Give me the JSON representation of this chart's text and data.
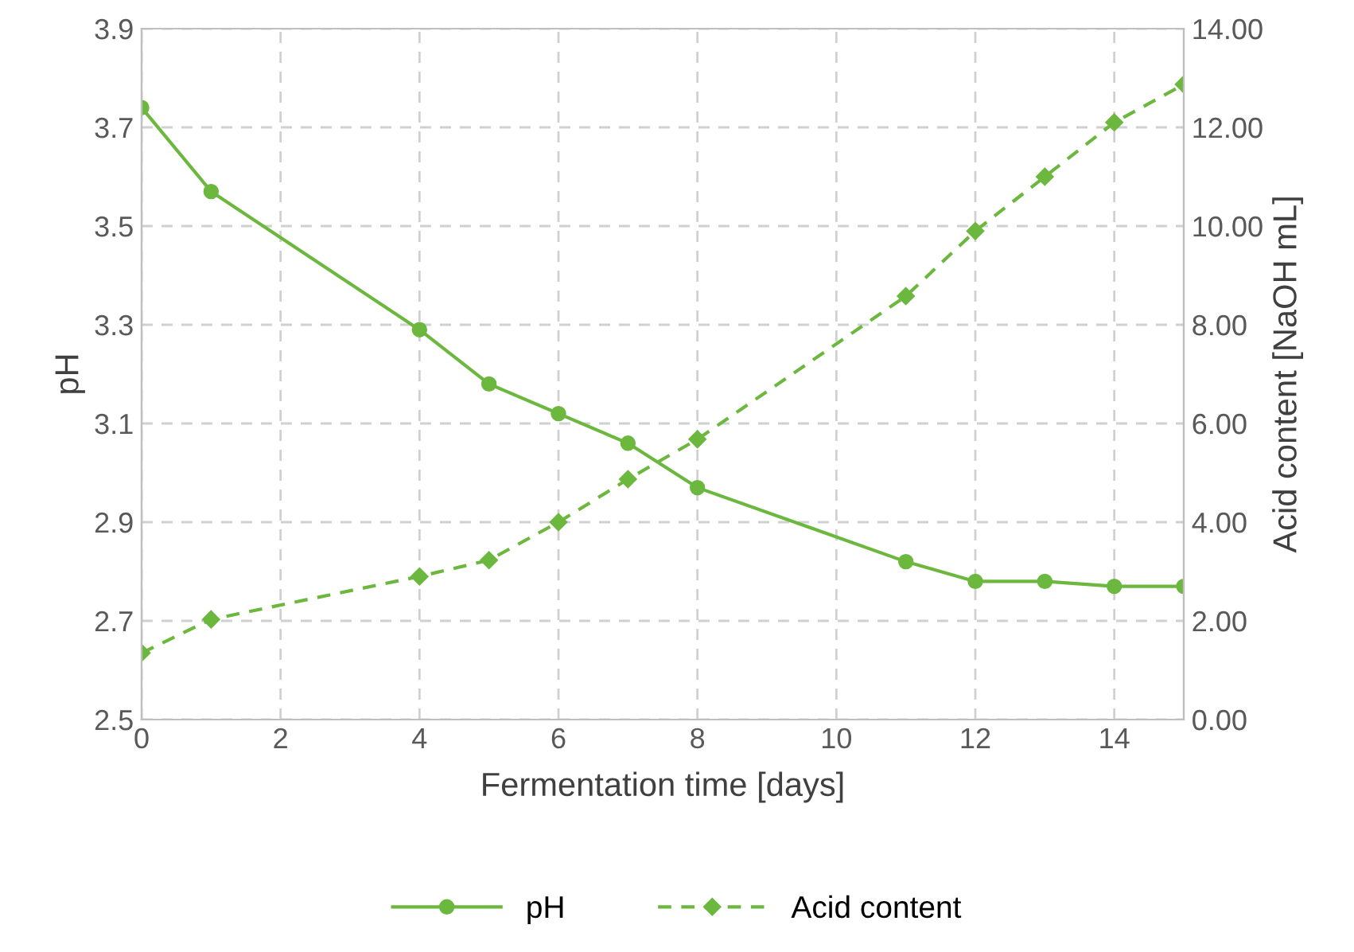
{
  "chart_data": {
    "type": "line",
    "xlabel": "Fermentation time [days]",
    "ylabel": "pH",
    "y2label": "Acid content [NaOH mL]",
    "x": [
      0,
      1,
      4,
      5,
      6,
      7,
      8,
      11,
      12,
      13,
      14,
      15
    ],
    "series": [
      {
        "name": "pH",
        "color": "#6cb83f",
        "marker": "circle",
        "line_style": "solid",
        "values": [
          3.74,
          3.57,
          3.29,
          3.18,
          3.12,
          3.06,
          2.97,
          2.82,
          2.78,
          2.78,
          2.77,
          2.77
        ]
      },
      {
        "name": "Acid content",
        "color": "#6cb83f",
        "marker": "diamond",
        "line_style": "dashed",
        "axis": "y2",
        "values": [
          1.35,
          2.03,
          2.9,
          3.23,
          4.0,
          4.87,
          5.68,
          8.58,
          9.9,
          11.0,
          12.1,
          12.87
        ]
      }
    ],
    "xlim": [
      0,
      15
    ],
    "xticks": [
      0,
      2,
      4,
      6,
      8,
      10,
      12,
      14
    ],
    "ylim": [
      2.5,
      3.9
    ],
    "yticks": [
      2.5,
      2.7,
      2.9,
      3.1,
      3.3,
      3.5,
      3.7,
      3.9
    ],
    "y2lim": [
      0,
      14
    ],
    "y2ticks": [
      {
        "value": 0,
        "label": "0.00"
      },
      {
        "value": 2,
        "label": "2.00"
      },
      {
        "value": 4,
        "label": "4.00"
      },
      {
        "value": 6,
        "label": "6.00"
      },
      {
        "value": 8,
        "label": "8.00"
      },
      {
        "value": 10,
        "label": "10.00"
      },
      {
        "value": 12,
        "label": "12.00"
      },
      {
        "value": 14,
        "label": "14.00"
      }
    ],
    "grid": true,
    "legend": "bottom"
  }
}
